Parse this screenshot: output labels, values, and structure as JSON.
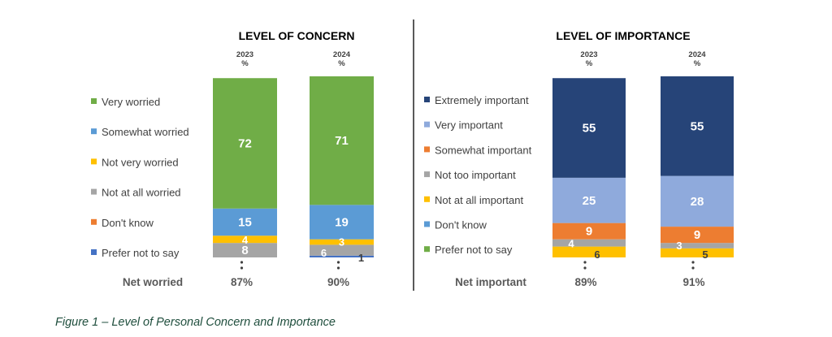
{
  "figure_caption": "Figure 1 – Level of Personal Concern and Importance",
  "colors": {
    "dark_navy": "#264478",
    "light_blue": "#8faadc",
    "mid_blue": "#5b9bd5",
    "green": "#70ad47",
    "yellow": "#ffc000",
    "orange": "#ed7d31",
    "gray": "#a5a5a5",
    "deep_blue": "#4472c4"
  },
  "chart_data": [
    {
      "type": "bar",
      "stacked": true,
      "title": "LEVEL OF CONCERN",
      "categories": [
        "2023",
        "2024"
      ],
      "category_unit": "%",
      "ylim": [
        0,
        100
      ],
      "series": [
        {
          "name": "Prefer not to say",
          "color": "#4472c4",
          "values": [
            0,
            1
          ],
          "labels": [
            "",
            "1"
          ]
        },
        {
          "name": "Don't know",
          "color": "#ed7d31",
          "values": [
            0,
            0
          ],
          "labels": [
            "",
            ""
          ]
        },
        {
          "name": "Not at all worried",
          "color": "#a5a5a5",
          "values": [
            8,
            6
          ],
          "labels": [
            "8",
            "6"
          ]
        },
        {
          "name": "Not very worried",
          "color": "#ffc000",
          "values": [
            4,
            3
          ],
          "labels": [
            "4",
            "3"
          ]
        },
        {
          "name": "Somewhat worried",
          "color": "#5b9bd5",
          "values": [
            15,
            19
          ],
          "labels": [
            "15",
            "19"
          ]
        },
        {
          "name": "Very worried",
          "color": "#70ad47",
          "values": [
            72,
            71
          ],
          "labels": [
            "72",
            "71"
          ]
        }
      ],
      "legend_order": [
        "Very worried",
        "Somewhat worried",
        "Not very worried",
        "Not at all worried",
        "Don't know",
        "Prefer not to say"
      ],
      "net_label": "Net worried",
      "net_values": [
        "87%",
        "90%"
      ]
    },
    {
      "type": "bar",
      "stacked": true,
      "title": "LEVEL OF IMPORTANCE",
      "categories": [
        "2023",
        "2024"
      ],
      "category_unit": "%",
      "ylim": [
        0,
        100
      ],
      "series": [
        {
          "name": "Prefer not to say",
          "color": "#70ad47",
          "values": [
            0,
            0
          ],
          "labels": [
            "",
            ""
          ]
        },
        {
          "name": "Don't know",
          "color": "#5b9bd5",
          "values": [
            0,
            0
          ],
          "labels": [
            "",
            ""
          ]
        },
        {
          "name": "Not at all important",
          "color": "#ffc000",
          "values": [
            6,
            5
          ],
          "labels": [
            "6",
            "5"
          ]
        },
        {
          "name": "Not too important",
          "color": "#a5a5a5",
          "values": [
            4,
            3
          ],
          "labels": [
            "4",
            "3"
          ]
        },
        {
          "name": "Somewhat important",
          "color": "#ed7d31",
          "values": [
            9,
            9
          ],
          "labels": [
            "9",
            "9"
          ]
        },
        {
          "name": "Very important",
          "color": "#8faadc",
          "values": [
            25,
            28
          ],
          "labels": [
            "25",
            "28"
          ]
        },
        {
          "name": "Extremely important",
          "color": "#264478",
          "values": [
            55,
            55
          ],
          "labels": [
            "55",
            "55"
          ]
        }
      ],
      "legend_order": [
        "Extremely important",
        "Very important",
        "Somewhat important",
        "Not too important",
        "Not at all important",
        "Don't know",
        "Prefer not to say"
      ],
      "net_label": "Net important",
      "net_values": [
        "89%",
        "91%"
      ]
    }
  ]
}
